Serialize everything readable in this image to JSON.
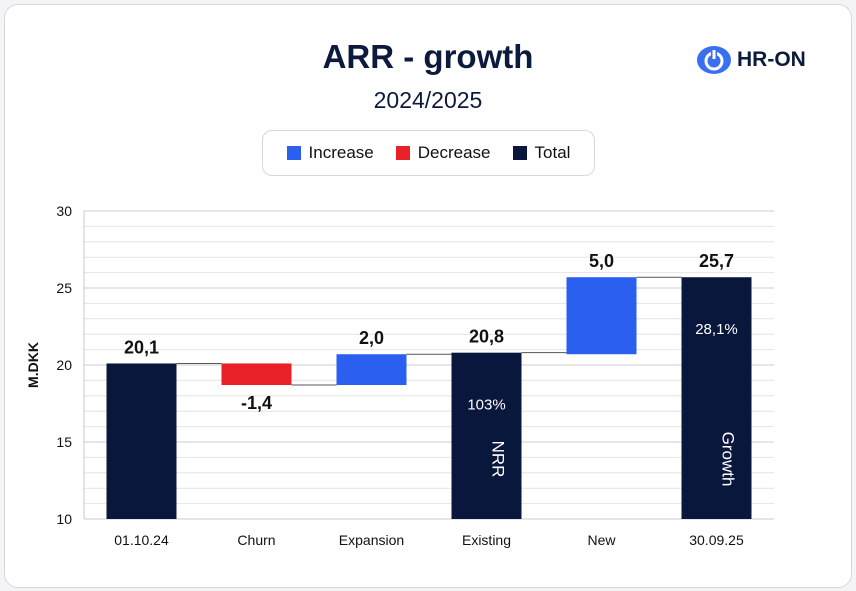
{
  "logo": {
    "text": "HR-ON"
  },
  "colors": {
    "increase": "#2b5ff0",
    "decrease": "#e82028",
    "total": "#0a173c",
    "grid": "#e4e4e6",
    "axis": "#c8c8cc"
  },
  "chart_data": {
    "type": "waterfall",
    "title": "ARR - growth",
    "subtitle": "2024/2025",
    "ylabel": "M.DKK",
    "ylim": [
      10,
      30
    ],
    "yticks": [
      10,
      15,
      20,
      25,
      30
    ],
    "legend": [
      {
        "key": "increase",
        "label": "Increase"
      },
      {
        "key": "decrease",
        "label": "Decrease"
      },
      {
        "key": "total",
        "label": "Total"
      }
    ],
    "categories": [
      "01.10.24",
      "Churn",
      "Expansion",
      "Existing",
      "New",
      "30.09.25"
    ],
    "bars": [
      {
        "kind": "total",
        "start": 10,
        "end": 20.1,
        "label": "20,1"
      },
      {
        "kind": "decrease",
        "start": 20.1,
        "end": 18.7,
        "label": "-1,4"
      },
      {
        "kind": "increase",
        "start": 18.7,
        "end": 20.7,
        "label": "2,0"
      },
      {
        "kind": "total",
        "start": 10,
        "end": 20.8,
        "label": "20,8",
        "inner_value": "103%",
        "inner_vertical": "NRR"
      },
      {
        "kind": "increase",
        "start": 20.7,
        "end": 25.7,
        "label": "5,0"
      },
      {
        "kind": "total",
        "start": 10,
        "end": 25.7,
        "label": "25,7",
        "inner_value": "28,1%",
        "inner_vertical": "Growth"
      }
    ]
  }
}
